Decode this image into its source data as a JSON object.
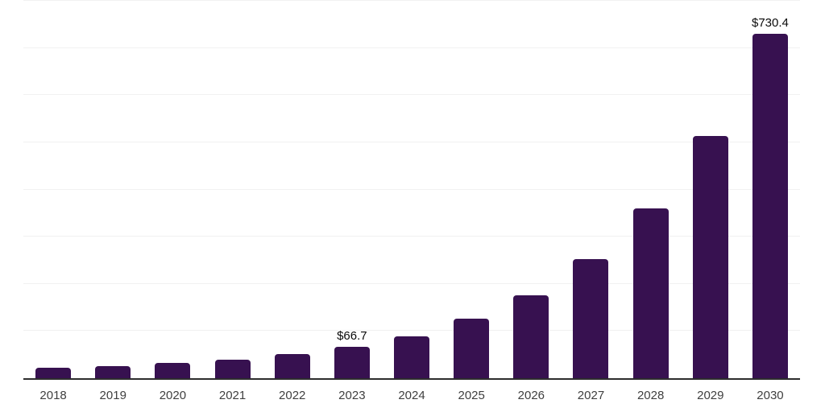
{
  "chart_data": {
    "type": "bar",
    "title": "",
    "xlabel": "",
    "ylabel": "",
    "categories": [
      "2018",
      "2019",
      "2020",
      "2021",
      "2022",
      "2023",
      "2024",
      "2025",
      "2026",
      "2027",
      "2028",
      "2029",
      "2030"
    ],
    "values": [
      22,
      26,
      32.5,
      39,
      51,
      66.7,
      89,
      127,
      176,
      252,
      360,
      513,
      730.4
    ],
    "bar_labels": [
      "",
      "",
      "",
      "",
      "",
      "$66.7",
      "",
      "",
      "",
      "",
      "",
      "",
      "$730.4"
    ],
    "ylim": [
      0,
      800
    ],
    "gridline_step": 100,
    "grid": "horizontal-only",
    "y_tick_labels_visible": false,
    "legend_position": "none",
    "currency_prefix": "$"
  },
  "colors": {
    "bar": "#371150",
    "grid_line": "#F1F1F1",
    "axis_line": "#2D2D2D",
    "tick_label": "#3F3F3F",
    "data_label": "#0A0A0A",
    "background": "#FFFFFF"
  }
}
